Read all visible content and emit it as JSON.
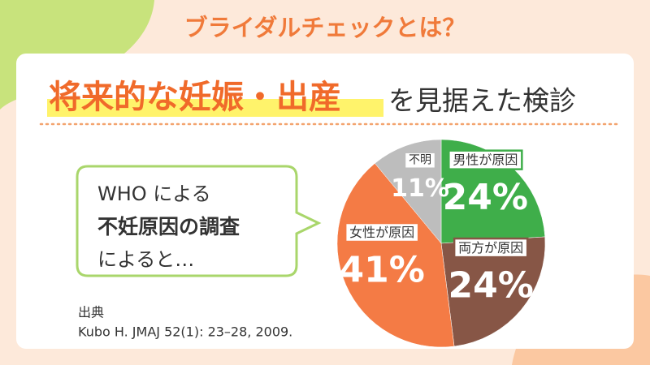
{
  "chart_data": {
    "type": "pie",
    "title": "ブライダルチェックとは？",
    "subtitle_highlight": "将来的な妊娠・出産",
    "subtitle_rest": "を見据えた検診",
    "annotations": [
      "WHO による",
      "不妊原因の調査",
      "によると…"
    ],
    "source_label": "出典",
    "source": "Kubo H. JMAJ 52(1): 23–28, 2009.",
    "categories": [
      "男性が原因",
      "両方が原因",
      "女性が原因",
      "不明"
    ],
    "values": [
      24,
      24,
      41,
      11
    ],
    "value_labels": [
      "24%",
      "24%",
      "41%",
      "11%"
    ],
    "colors": [
      "#3fae4a",
      "#875646",
      "#f47b45",
      "#bdbdbd"
    ]
  }
}
